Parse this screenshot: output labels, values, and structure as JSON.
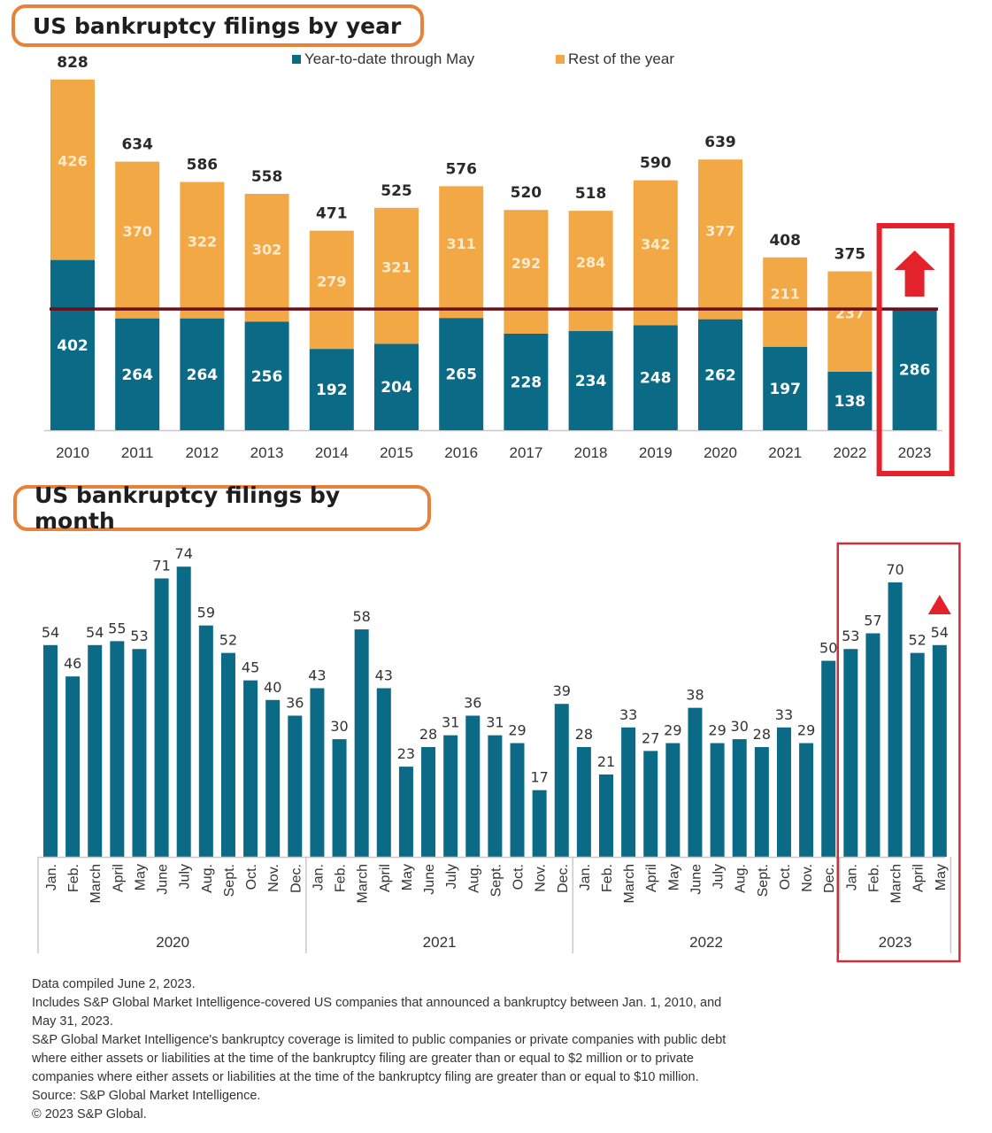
{
  "colors": {
    "ytd": "#0b6a85",
    "rest": "#f2a845",
    "highlight": "#e3222b",
    "reference_line": "#6b0f1a",
    "title_border": "#e8823a",
    "label_dark": "#2a2a2a",
    "label_light": "#ffffff"
  },
  "titles": {
    "yearly": "US bankruptcy filings by year",
    "monthly": "US bankruptcy filings by month"
  },
  "chart_data": [
    {
      "type": "bar",
      "stacked": true,
      "title": "US bankruptcy filings by year",
      "legend_position": "top-center",
      "xlabel": "",
      "ylabel": "",
      "categories": [
        "2010",
        "2011",
        "2012",
        "2013",
        "2014",
        "2015",
        "2016",
        "2017",
        "2018",
        "2019",
        "2020",
        "2021",
        "2022",
        "2023"
      ],
      "series": [
        {
          "name": "Year-to-date through May",
          "values": [
            402,
            264,
            264,
            256,
            192,
            204,
            265,
            228,
            234,
            248,
            262,
            197,
            138,
            286
          ]
        },
        {
          "name": "Rest of the year",
          "values": [
            426,
            370,
            322,
            302,
            279,
            321,
            311,
            292,
            284,
            342,
            377,
            211,
            237,
            null
          ]
        }
      ],
      "totals": [
        828,
        634,
        586,
        558,
        471,
        525,
        576,
        520,
        518,
        590,
        639,
        408,
        375,
        null
      ],
      "ylim": [
        0,
        850
      ],
      "grid": false,
      "annotations": [
        {
          "type": "reference_line",
          "value": 286,
          "description": "Horizontal line at 2023 year-to-date level"
        },
        {
          "type": "highlight_box",
          "category": "2023"
        },
        {
          "type": "up_arrow",
          "category": "2023"
        }
      ]
    },
    {
      "type": "bar",
      "title": "US bankruptcy filings by month",
      "xlabel": "",
      "ylabel": "",
      "groups": [
        {
          "year": "2020",
          "months": [
            "Jan.",
            "Feb.",
            "March",
            "April",
            "May",
            "June",
            "July",
            "Aug.",
            "Sept.",
            "Oct.",
            "Nov.",
            "Dec."
          ],
          "values": [
            54,
            46,
            54,
            55,
            53,
            71,
            74,
            59,
            52,
            45,
            40,
            36
          ]
        },
        {
          "year": "2021",
          "months": [
            "Jan.",
            "Feb.",
            "March",
            "April",
            "May",
            "June",
            "July",
            "Aug.",
            "Sept.",
            "Oct.",
            "Nov.",
            "Dec."
          ],
          "values": [
            43,
            30,
            58,
            43,
            23,
            28,
            31,
            36,
            31,
            29,
            17,
            39
          ]
        },
        {
          "year": "2022",
          "months": [
            "Jan.",
            "Feb.",
            "March",
            "April",
            "May",
            "June",
            "July",
            "Aug.",
            "Sept.",
            "Oct.",
            "Nov.",
            "Dec."
          ],
          "values": [
            28,
            21,
            33,
            27,
            29,
            38,
            29,
            30,
            28,
            33,
            29,
            50
          ]
        },
        {
          "year": "2023",
          "months": [
            "Jan.",
            "Feb.",
            "March",
            "April",
            "May"
          ],
          "values": [
            53,
            57,
            70,
            52,
            54
          ]
        }
      ],
      "ylim": [
        0,
        80
      ],
      "grid": false,
      "annotations": [
        {
          "type": "highlight_box",
          "group": "2023"
        },
        {
          "type": "up_triangle",
          "category": "2023 May"
        }
      ]
    }
  ],
  "footnotes": [
    "Data compiled June 2, 2023.",
    "Includes S&P Global Market Intelligence-covered US companies that announced a bankruptcy between Jan. 1, 2010, and",
    "May 31, 2023.",
    "S&P Global Market Intelligence's bankruptcy coverage is limited to public companies or private companies with public debt",
    "where either assets or liabilities at the time of the bankruptcy filing are greater than or equal to $2 million or to private",
    "companies where either assets or liabilities at the time of the bankruptcy filing are greater than or equal to $10 million.",
    "Source: S&P Global Market Intelligence.",
    "© 2023 S&P Global."
  ]
}
